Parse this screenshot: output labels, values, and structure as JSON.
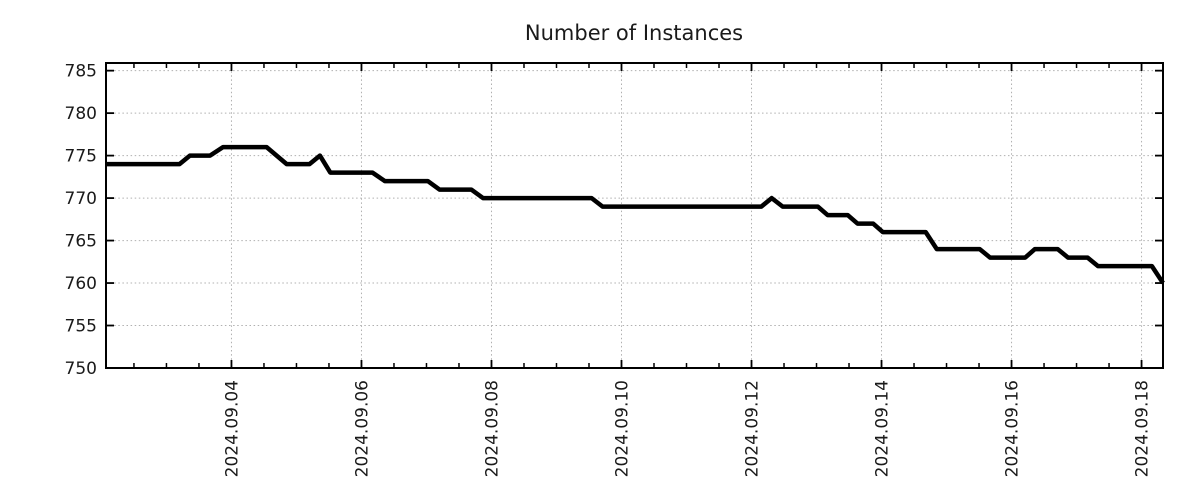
{
  "chart_data": {
    "type": "line",
    "title": "Number of Instances",
    "x_axis": {
      "kind": "time",
      "x_units": "day_of_month_2024_09",
      "range_days": [
        2.07,
        18.33
      ],
      "major_tick_days": [
        4,
        6,
        8,
        10,
        12,
        14,
        16,
        18
      ],
      "major_tick_labels": [
        "2024.09.04",
        "2024.09.06",
        "2024.09.08",
        "2024.09.10",
        "2024.09.12",
        "2024.09.14",
        "2024.09.16",
        "2024.09.18"
      ],
      "minor_tick_interval_days": 0.5,
      "tick_label_rotation_deg": -90
    },
    "y_axis": {
      "range": [
        750,
        785.9
      ],
      "ticks": [
        750,
        755,
        760,
        765,
        770,
        775,
        780,
        785
      ]
    },
    "grid": {
      "style": "dotted",
      "color": "#b0b0b0"
    },
    "legend": "none",
    "series": [
      {
        "name": "instances",
        "color": "#000000",
        "line_width": 4.5,
        "points": [
          [
            2.07,
            774
          ],
          [
            3.2,
            774
          ],
          [
            3.36,
            775
          ],
          [
            3.67,
            775
          ],
          [
            3.87,
            776
          ],
          [
            4.54,
            776
          ],
          [
            4.85,
            774
          ],
          [
            5.2,
            774
          ],
          [
            5.36,
            775
          ],
          [
            5.52,
            773
          ],
          [
            6.17,
            773
          ],
          [
            6.36,
            772
          ],
          [
            7.02,
            772
          ],
          [
            7.2,
            771
          ],
          [
            7.69,
            771
          ],
          [
            7.87,
            770
          ],
          [
            9.54,
            770
          ],
          [
            9.71,
            769
          ],
          [
            12.15,
            769
          ],
          [
            12.31,
            770
          ],
          [
            12.48,
            769
          ],
          [
            13.02,
            769
          ],
          [
            13.17,
            768
          ],
          [
            13.48,
            768
          ],
          [
            13.63,
            767
          ],
          [
            13.87,
            767
          ],
          [
            14.02,
            766
          ],
          [
            14.68,
            766
          ],
          [
            14.85,
            764
          ],
          [
            15.51,
            764
          ],
          [
            15.67,
            763
          ],
          [
            16.21,
            763
          ],
          [
            16.36,
            764
          ],
          [
            16.71,
            764
          ],
          [
            16.87,
            763
          ],
          [
            17.17,
            763
          ],
          [
            17.33,
            762
          ],
          [
            18.16,
            762
          ],
          [
            18.33,
            760
          ]
        ]
      }
    ]
  }
}
